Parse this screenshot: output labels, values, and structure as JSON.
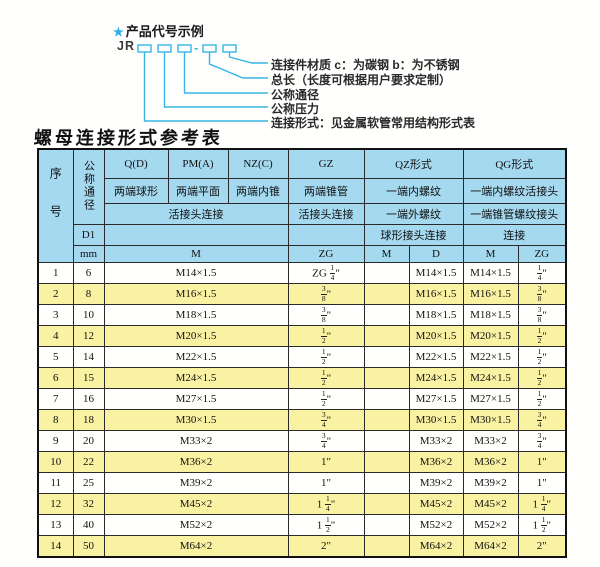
{
  "diagram": {
    "star": "★",
    "title": "产品代号示例",
    "code_prefix": "JR",
    "dash": "-",
    "labels": [
      "连接件材质  c：为碳钢  b：为不锈钢",
      "总长（长度可根据用户要求定制）",
      "公称通径",
      "公称压力",
      "连接形式：见金属软管常用结构形式表"
    ]
  },
  "table": {
    "title": "螺母连接形式参考表",
    "header": {
      "seq": "序号",
      "dn": "公称通径",
      "d1": "D1",
      "mm": "mm",
      "col_q": "Q(D)",
      "col_q_sub": "两端球形",
      "col_pm": "PM(A)",
      "col_pm_sub": "两端平面",
      "col_nz": "NZ(C)",
      "col_nz_sub": "两端内锥",
      "col_gz": "GZ",
      "col_gz_sub": "两端锥管",
      "union_joint": "活接头连接",
      "gz_joint": "活接头连接",
      "col_qz": "QZ形式",
      "qz_sub1": "一端内螺纹",
      "qz_sub2": "一端外螺纹",
      "qz_sub3": "球形接头连接",
      "col_qg": "QG形式",
      "qg_sub1": "一端内螺纹活接头",
      "qg_sub2": "一端锥管螺纹接头",
      "qg_sub3": "连接",
      "m": "M",
      "zg": "ZG",
      "d": "D"
    },
    "rows": [
      {
        "seq": "1",
        "dn": "6",
        "m": "M14×1.5",
        "gz": "ZG 1/4\"",
        "qz_m": "",
        "qz_d": "M14×1.5",
        "qg_m": "M14×1.5",
        "qg_zg": "1/4\""
      },
      {
        "seq": "2",
        "dn": "8",
        "m": "M16×1.5",
        "gz": "3/8\"",
        "qz_m": "",
        "qz_d": "M16×1.5",
        "qg_m": "M16×1.5",
        "qg_zg": "3/8\""
      },
      {
        "seq": "3",
        "dn": "10",
        "m": "M18×1.5",
        "gz": "3/8\"",
        "qz_m": "",
        "qz_d": "M18×1.5",
        "qg_m": "M18×1.5",
        "qg_zg": "3/8\""
      },
      {
        "seq": "4",
        "dn": "12",
        "m": "M20×1.5",
        "gz": "1/2\"",
        "qz_m": "",
        "qz_d": "M20×1.5",
        "qg_m": "M20×1.5",
        "qg_zg": "1/2\""
      },
      {
        "seq": "5",
        "dn": "14",
        "m": "M22×1.5",
        "gz": "1/2\"",
        "qz_m": "",
        "qz_d": "M22×1.5",
        "qg_m": "M22×1.5",
        "qg_zg": "1/2\""
      },
      {
        "seq": "6",
        "dn": "15",
        "m": "M24×1.5",
        "gz": "1/2\"",
        "qz_m": "",
        "qz_d": "M24×1.5",
        "qg_m": "M24×1.5",
        "qg_zg": "1/2\""
      },
      {
        "seq": "7",
        "dn": "16",
        "m": "M27×1.5",
        "gz": "1/2\"",
        "qz_m": "",
        "qz_d": "M27×1.5",
        "qg_m": "M27×1.5",
        "qg_zg": "1/2\""
      },
      {
        "seq": "8",
        "dn": "18",
        "m": "M30×1.5",
        "gz": "3/4\"",
        "qz_m": "",
        "qz_d": "M30×1.5",
        "qg_m": "M30×1.5",
        "qg_zg": "3/4\""
      },
      {
        "seq": "9",
        "dn": "20",
        "m": "M33×2",
        "gz": "3/4\"",
        "qz_m": "",
        "qz_d": "M33×2",
        "qg_m": "M33×2",
        "qg_zg": "3/4\""
      },
      {
        "seq": "10",
        "dn": "22",
        "m": "M36×2",
        "gz": "1\"",
        "qz_m": "",
        "qz_d": "M36×2",
        "qg_m": "M36×2",
        "qg_zg": "1\""
      },
      {
        "seq": "11",
        "dn": "25",
        "m": "M39×2",
        "gz": "1\"",
        "qz_m": "",
        "qz_d": "M39×2",
        "qg_m": "M39×2",
        "qg_zg": "1\""
      },
      {
        "seq": "12",
        "dn": "32",
        "m": "M45×2",
        "gz": "1 1/4\"",
        "qz_m": "",
        "qz_d": "M45×2",
        "qg_m": "M45×2",
        "qg_zg": "1 1/4\""
      },
      {
        "seq": "13",
        "dn": "40",
        "m": "M52×2",
        "gz": "1 1/2\"",
        "qz_m": "",
        "qz_d": "M52×2",
        "qg_m": "M52×2",
        "qg_zg": "1 1/2\""
      },
      {
        "seq": "14",
        "dn": "50",
        "m": "M64×2",
        "gz": "2\"",
        "qz_m": "",
        "qz_d": "M64×2",
        "qg_m": "M64×2",
        "qg_zg": "2\""
      }
    ]
  },
  "colors": {
    "header_bg": "#a5d9f0",
    "row_alt_bg": "#f9f2a2",
    "accent_line": "#35b5e5",
    "border": "#2a2a2a"
  }
}
